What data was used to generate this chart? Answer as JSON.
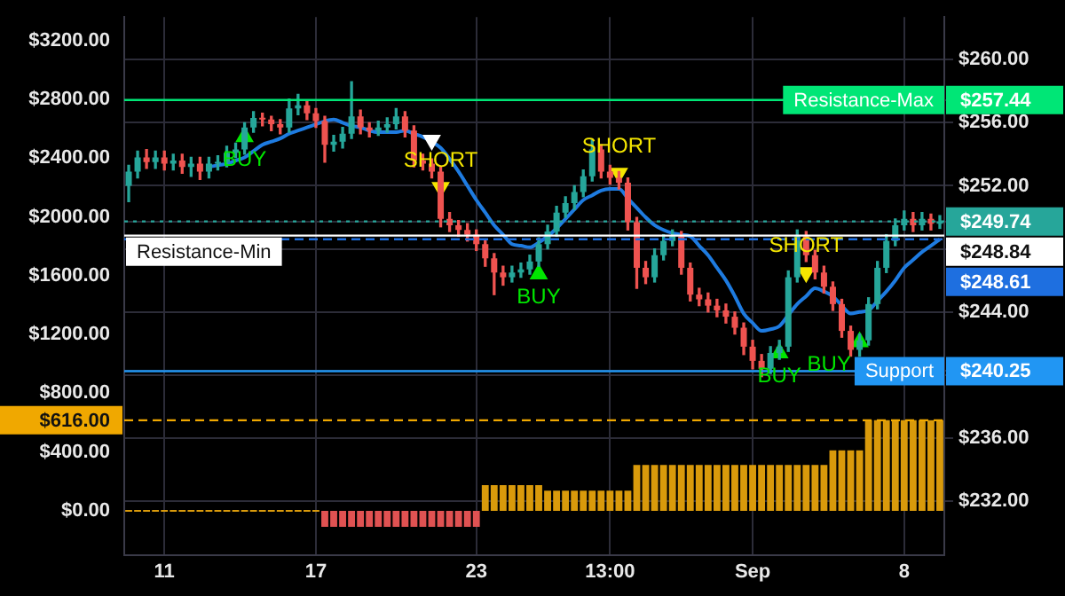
{
  "chart_data": {
    "type": "candlestick",
    "categories": [
      null,
      null,
      null,
      null,
      "11",
      null,
      null,
      null,
      null,
      null,
      null,
      null,
      null,
      null,
      null,
      null,
      null,
      null,
      null,
      null,
      null,
      "17",
      null,
      null,
      null,
      null,
      null,
      null,
      null,
      null,
      null,
      null,
      null,
      null,
      null,
      null,
      null,
      null,
      null,
      "23",
      null,
      null,
      null,
      null,
      null,
      null,
      null,
      null,
      null,
      null,
      null,
      null,
      null,
      null,
      "13:00",
      null,
      null,
      null,
      null,
      null,
      null,
      null,
      null,
      null,
      null,
      null,
      null,
      null,
      null,
      null,
      "Sep",
      null,
      null,
      null,
      null,
      null,
      null,
      null,
      null,
      null,
      null,
      null,
      null,
      null,
      null,
      null,
      null,
      "8",
      null,
      null,
      null,
      null
    ],
    "ohlc": [
      [
        252.0,
        253.3,
        251.0,
        252.9
      ],
      [
        252.9,
        254.2,
        252.5,
        253.8
      ],
      [
        253.8,
        254.3,
        253.1,
        253.5
      ],
      [
        253.5,
        254.2,
        253.1,
        253.8
      ],
      [
        253.8,
        254.2,
        253.0,
        253.4
      ],
      [
        253.4,
        254.0,
        253.0,
        253.6
      ],
      [
        253.6,
        254.0,
        252.8,
        253.2
      ],
      [
        253.2,
        253.8,
        252.6,
        253.4
      ],
      [
        253.4,
        253.8,
        252.4,
        252.9
      ],
      [
        252.9,
        253.8,
        252.5,
        253.4
      ],
      [
        253.4,
        253.9,
        253.0,
        253.5
      ],
      [
        253.5,
        254.5,
        253.2,
        254.1
      ],
      [
        254.1,
        254.7,
        253.8,
        254.3
      ],
      [
        254.3,
        256.0,
        254.0,
        255.7
      ],
      [
        255.7,
        256.7,
        255.4,
        256.3
      ],
      [
        256.3,
        256.6,
        255.8,
        256.2
      ],
      [
        256.2,
        256.4,
        255.5,
        255.9
      ],
      [
        255.9,
        256.2,
        255.3,
        255.7
      ],
      [
        255.7,
        257.5,
        255.4,
        256.9
      ],
      [
        256.9,
        257.8,
        256.5,
        257.1
      ],
      [
        257.1,
        257.4,
        256.2,
        256.6
      ],
      [
        256.6,
        256.9,
        255.7,
        256.1
      ],
      [
        256.1,
        256.4,
        253.5,
        254.6
      ],
      [
        254.6,
        255.2,
        254.2,
        254.8
      ],
      [
        254.8,
        255.7,
        254.4,
        255.3
      ],
      [
        255.3,
        258.6,
        255.0,
        256.4
      ],
      [
        256.4,
        256.8,
        255.3,
        255.7
      ],
      [
        255.7,
        256.0,
        255.1,
        255.5
      ],
      [
        255.5,
        256.1,
        255.2,
        255.7
      ],
      [
        255.7,
        256.3,
        255.4,
        255.9
      ],
      [
        255.9,
        256.9,
        255.6,
        256.4
      ],
      [
        256.4,
        256.7,
        255.1,
        255.5
      ],
      [
        255.5,
        255.8,
        253.2,
        253.6
      ],
      [
        253.6,
        254.0,
        253.0,
        253.4
      ],
      [
        253.4,
        253.7,
        252.5,
        252.9
      ],
      [
        252.9,
        253.2,
        249.4,
        249.9
      ],
      [
        249.9,
        250.3,
        249.1,
        249.5
      ],
      [
        249.5,
        249.8,
        248.8,
        249.2
      ],
      [
        249.2,
        249.6,
        248.5,
        248.9
      ],
      [
        248.9,
        249.2,
        247.9,
        248.3
      ],
      [
        248.3,
        248.6,
        246.9,
        247.4
      ],
      [
        247.4,
        247.7,
        245.1,
        246.5
      ],
      [
        246.5,
        246.9,
        245.7,
        246.2
      ],
      [
        246.2,
        246.9,
        245.9,
        246.5
      ],
      [
        246.5,
        247.1,
        246.2,
        246.7
      ],
      [
        246.7,
        247.6,
        246.4,
        247.2
      ],
      [
        247.2,
        248.7,
        246.9,
        248.3
      ],
      [
        248.3,
        249.5,
        248.0,
        249.1
      ],
      [
        249.1,
        250.7,
        248.8,
        250.3
      ],
      [
        250.3,
        251.3,
        250.0,
        250.9
      ],
      [
        250.9,
        252.0,
        250.5,
        251.6
      ],
      [
        251.6,
        253.0,
        251.3,
        252.6
      ],
      [
        252.6,
        254.9,
        252.3,
        254.3
      ],
      [
        254.3,
        254.6,
        252.5,
        252.9
      ],
      [
        252.9,
        253.3,
        252.1,
        252.5
      ],
      [
        252.5,
        252.9,
        251.8,
        252.2
      ],
      [
        252.2,
        252.5,
        249.2,
        249.7
      ],
      [
        249.7,
        250.0,
        245.5,
        246.8
      ],
      [
        246.8,
        247.2,
        245.8,
        246.2
      ],
      [
        246.2,
        248.0,
        245.9,
        247.6
      ],
      [
        247.6,
        248.9,
        247.3,
        248.5
      ],
      [
        248.5,
        249.2,
        248.2,
        248.8
      ],
      [
        248.8,
        249.1,
        246.4,
        246.8
      ],
      [
        246.8,
        247.1,
        244.7,
        245.1
      ],
      [
        245.1,
        245.5,
        244.4,
        244.8
      ],
      [
        244.8,
        245.2,
        244.0,
        244.4
      ],
      [
        244.4,
        244.8,
        243.7,
        244.1
      ],
      [
        244.1,
        244.5,
        243.3,
        243.7
      ],
      [
        243.7,
        244.0,
        242.6,
        243.0
      ],
      [
        243.0,
        243.3,
        241.3,
        241.8
      ],
      [
        241.8,
        242.2,
        240.4,
        240.9
      ],
      [
        240.9,
        241.3,
        239.9,
        240.4
      ],
      [
        240.4,
        241.8,
        240.1,
        241.4
      ],
      [
        241.4,
        242.2,
        241.0,
        241.8
      ],
      [
        241.8,
        246.6,
        241.5,
        246.2
      ],
      [
        246.2,
        249.2,
        245.9,
        248.8
      ],
      [
        248.8,
        249.1,
        247.2,
        247.6
      ],
      [
        247.6,
        247.9,
        246.1,
        246.5
      ],
      [
        246.5,
        246.9,
        245.2,
        245.6
      ],
      [
        245.6,
        245.9,
        244.1,
        244.5
      ],
      [
        244.5,
        244.8,
        242.4,
        242.8
      ],
      [
        242.8,
        243.1,
        241.2,
        241.6
      ],
      [
        241.6,
        242.6,
        241.2,
        242.2
      ],
      [
        242.2,
        244.9,
        241.9,
        244.5
      ],
      [
        244.5,
        247.2,
        244.2,
        246.8
      ],
      [
        246.8,
        248.9,
        246.5,
        248.5
      ],
      [
        248.5,
        249.9,
        248.2,
        249.5
      ],
      [
        249.5,
        250.4,
        249.2,
        249.9
      ],
      [
        249.9,
        250.3,
        249.1,
        249.5
      ],
      [
        249.5,
        250.3,
        249.2,
        249.9
      ],
      [
        249.9,
        250.2,
        249.2,
        249.6
      ],
      [
        249.6,
        250.1,
        249.3,
        249.74
      ]
    ],
    "colors": [
      "#26a69a",
      "#26a69a",
      "#ef5350",
      "#26a69a",
      "#ef5350",
      "#26a69a",
      "#ef5350",
      "#26a69a",
      "#ef5350",
      "#26a69a",
      "#26a69a",
      "#26a69a",
      "#26a69a",
      "#26a69a",
      "#26a69a",
      "#ef5350",
      "#ef5350",
      "#ef5350",
      "#26a69a",
      "#26a69a",
      "#ef5350",
      "#ef5350",
      "#ef5350",
      "#26a69a",
      "#26a69a",
      "#26a69a",
      "#ef5350",
      "#ef5350",
      "#26a69a",
      "#26a69a",
      "#26a69a",
      "#ef5350",
      "#ef5350",
      "#ef5350",
      "#ef5350",
      "#ef5350",
      "#ef5350",
      "#ef5350",
      "#ef5350",
      "#ef5350",
      "#ef5350",
      "#ef5350",
      "#ef5350",
      "#26a69a",
      "#26a69a",
      "#26a69a",
      "#26a69a",
      "#26a69a",
      "#26a69a",
      "#26a69a",
      "#26a69a",
      "#26a69a",
      "#26a69a",
      "#ef5350",
      "#ef5350",
      "#ef5350",
      "#ef5350",
      "#ef5350",
      "#ef5350",
      "#26a69a",
      "#26a69a",
      "#26a69a",
      "#ef5350",
      "#ef5350",
      "#ef5350",
      "#ef5350",
      "#ef5350",
      "#ef5350",
      "#ef5350",
      "#ef5350",
      "#ef5350",
      "#ef5350",
      "#26a69a",
      "#26a69a",
      "#26a69a",
      "#26a69a",
      "#ef5350",
      "#ef5350",
      "#ef5350",
      "#ef5350",
      "#ef5350",
      "#ef5350",
      "#26a69a",
      "#26a69a",
      "#26a69a",
      "#26a69a",
      "#26a69a",
      "#26a69a",
      "#ef5350",
      "#26a69a",
      "#ef5350",
      "#26a69a"
    ],
    "series": [
      {
        "type": "bar",
        "axis": "y2",
        "values": [
          0,
          0,
          0,
          0,
          0,
          0,
          0,
          0,
          0,
          0,
          0,
          0,
          0,
          0,
          0,
          0,
          0,
          0,
          0,
          0,
          0,
          0,
          -110,
          -110,
          -110,
          -110,
          -110,
          -110,
          -110,
          -110,
          -110,
          -110,
          -110,
          -110,
          -110,
          -110,
          -110,
          -110,
          -110,
          -110,
          174,
          174,
          174,
          174,
          174,
          174,
          174,
          137,
          137,
          137,
          137,
          137,
          137,
          137,
          137,
          137,
          137,
          311,
          311,
          311,
          311,
          311,
          311,
          311,
          311,
          311,
          311,
          311,
          311,
          311,
          311,
          311,
          311,
          311,
          311,
          311,
          311,
          311,
          311,
          411,
          411,
          411,
          411,
          616,
          616,
          616,
          616,
          616,
          616,
          616,
          616,
          616
        ],
        "colors": [
          "#d99a0b",
          "#d99a0b",
          "#d99a0b",
          "#d99a0b",
          "#d99a0b",
          "#d99a0b",
          "#d99a0b",
          "#d99a0b",
          "#d99a0b",
          "#d99a0b",
          "#d99a0b",
          "#d99a0b",
          "#d99a0b",
          "#d99a0b",
          "#d99a0b",
          "#d99a0b",
          "#d99a0b",
          "#d99a0b",
          "#d99a0b",
          "#d99a0b",
          "#d99a0b",
          "#d99a0b",
          "#e05252",
          "#e05252",
          "#e05252",
          "#e05252",
          "#e05252",
          "#e05252",
          "#e05252",
          "#e05252",
          "#e05252",
          "#e05252",
          "#e05252",
          "#e05252",
          "#e05252",
          "#e05252",
          "#e05252",
          "#e05252",
          "#e05252",
          "#e05252",
          "#d99a0b",
          "#d99a0b",
          "#d99a0b",
          "#d99a0b",
          "#d99a0b",
          "#d99a0b",
          "#d99a0b",
          "#d99a0b",
          "#d99a0b",
          "#d99a0b",
          "#d99a0b",
          "#d99a0b",
          "#d99a0b",
          "#d99a0b",
          "#d99a0b",
          "#d99a0b",
          "#d99a0b",
          "#d99a0b",
          "#d99a0b",
          "#d99a0b",
          "#d99a0b",
          "#d99a0b",
          "#d99a0b",
          "#d99a0b",
          "#d99a0b",
          "#d99a0b",
          "#d99a0b",
          "#d99a0b",
          "#d99a0b",
          "#d99a0b",
          "#d99a0b",
          "#d99a0b",
          "#d99a0b",
          "#d99a0b",
          "#d99a0b",
          "#d99a0b",
          "#d99a0b",
          "#d99a0b",
          "#d99a0b",
          "#d99a0b",
          "#d99a0b",
          "#d99a0b",
          "#d99a0b",
          "#d99a0b",
          "#d99a0b",
          "#d99a0b",
          "#d99a0b",
          "#d99a0b",
          "#d99a0b",
          "#d99a0b",
          "#d99a0b",
          "#d99a0b"
        ]
      },
      {
        "type": "line",
        "color": "#1e7be0",
        "values": [
          null,
          null,
          null,
          null,
          null,
          null,
          null,
          null,
          null,
          253.2,
          253.3,
          253.4,
          253.6,
          253.8,
          254.2,
          254.6,
          254.8,
          255.0,
          255.3,
          255.5,
          255.7,
          255.9,
          256.1,
          256.2,
          256.0,
          255.8,
          255.7,
          255.5,
          255.4,
          255.4,
          255.4,
          255.5,
          255.3,
          255.1,
          254.8,
          254.4,
          253.7,
          252.9,
          252.0,
          251.1,
          250.3,
          249.5,
          248.9,
          248.3,
          248.2,
          248.1,
          248.4,
          248.8,
          249.3,
          249.9,
          250.5,
          251.1,
          251.4,
          251.7,
          251.8,
          251.8,
          251.2,
          250.6,
          250.0,
          249.5,
          249.2,
          249.0,
          248.9,
          248.8,
          248.2,
          247.6,
          246.8,
          246.0,
          245.0,
          243.9,
          243.3,
          242.8,
          242.9,
          243.1,
          243.8,
          244.5,
          245.0,
          245.5,
          245.3,
          245.0,
          244.4,
          243.9,
          244.0,
          244.1,
          244.7,
          245.3,
          246.0,
          246.8,
          247.3,
          247.8,
          248.2,
          248.61
        ]
      },
      {
        "type": "scatter",
        "color": "#00e600",
        "marker": "triangle",
        "values": [
          null,
          null,
          null,
          null,
          null,
          null,
          null,
          null,
          null,
          null,
          null,
          null,
          null,
          255.1,
          null,
          null,
          null,
          null,
          null,
          null,
          null,
          null,
          null,
          null,
          null,
          null,
          null,
          null,
          null,
          null,
          null,
          null,
          null,
          null,
          null,
          null,
          null,
          null,
          null,
          null,
          null,
          null,
          null,
          null,
          null,
          null,
          246.4,
          null,
          null,
          null,
          null,
          null,
          null,
          null,
          null,
          null,
          null,
          null,
          null,
          null,
          null,
          null,
          null,
          null,
          null,
          null,
          null,
          null,
          null,
          null,
          null,
          null,
          null,
          241.4,
          null,
          null,
          null,
          null,
          null,
          null,
          null,
          null,
          242.1,
          null,
          null,
          null,
          null,
          null,
          null,
          null,
          null,
          null
        ],
        "value_labels": [
          null,
          null,
          null,
          null,
          null,
          null,
          null,
          null,
          null,
          null,
          null,
          null,
          null,
          "BUY",
          null,
          null,
          null,
          null,
          null,
          null,
          null,
          null,
          null,
          null,
          null,
          null,
          null,
          null,
          null,
          null,
          null,
          null,
          null,
          null,
          null,
          null,
          null,
          null,
          null,
          null,
          null,
          null,
          null,
          null,
          null,
          null,
          "BUY",
          null,
          null,
          null,
          null,
          null,
          null,
          null,
          null,
          null,
          null,
          null,
          null,
          null,
          null,
          null,
          null,
          null,
          null,
          null,
          null,
          null,
          null,
          null,
          null,
          null,
          null,
          "BUY",
          null,
          null,
          null,
          null,
          null,
          null,
          null,
          null,
          "BUY",
          null,
          null,
          null,
          null,
          null,
          null,
          null,
          null,
          null
        ]
      },
      {
        "type": "scatter",
        "color": "#f5e600",
        "marker": "triangle",
        "values": [
          null,
          null,
          null,
          null,
          null,
          null,
          null,
          null,
          null,
          null,
          null,
          null,
          null,
          null,
          null,
          null,
          null,
          null,
          null,
          null,
          null,
          null,
          null,
          null,
          null,
          null,
          null,
          null,
          null,
          null,
          null,
          null,
          null,
          null,
          null,
          251.9,
          null,
          null,
          null,
          null,
          null,
          null,
          null,
          null,
          null,
          null,
          null,
          null,
          null,
          null,
          null,
          null,
          null,
          null,
          null,
          252.8,
          null,
          null,
          null,
          null,
          null,
          null,
          null,
          null,
          null,
          null,
          null,
          null,
          null,
          null,
          null,
          null,
          null,
          null,
          null,
          null,
          246.5,
          null,
          null,
          null,
          null,
          null,
          null,
          null,
          null,
          null,
          null,
          null,
          null,
          null,
          null,
          null
        ],
        "value_labels": [
          null,
          null,
          null,
          null,
          null,
          null,
          null,
          null,
          null,
          null,
          null,
          null,
          null,
          null,
          null,
          null,
          null,
          null,
          null,
          null,
          null,
          null,
          null,
          null,
          null,
          null,
          null,
          null,
          null,
          null,
          null,
          null,
          null,
          null,
          null,
          "SHORT",
          null,
          null,
          null,
          null,
          null,
          null,
          null,
          null,
          null,
          null,
          null,
          null,
          null,
          null,
          null,
          null,
          null,
          null,
          null,
          "SHORT",
          null,
          null,
          null,
          null,
          null,
          null,
          null,
          null,
          null,
          null,
          null,
          null,
          null,
          null,
          null,
          null,
          null,
          null,
          null,
          null,
          "SHORT",
          null,
          null,
          null,
          null,
          null,
          null,
          null,
          null,
          null,
          null,
          null,
          null,
          null,
          null,
          null
        ]
      },
      {
        "type": "scatter",
        "color": "#ffffff",
        "marker": "triangle",
        "values": [
          null,
          null,
          null,
          null,
          null,
          null,
          null,
          null,
          null,
          null,
          null,
          null,
          null,
          null,
          null,
          null,
          null,
          null,
          null,
          null,
          null,
          null,
          null,
          null,
          null,
          null,
          null,
          null,
          null,
          null,
          null,
          null,
          null,
          null,
          254.9,
          null,
          null,
          null,
          null,
          null,
          null,
          null,
          null,
          null,
          null,
          null,
          null,
          null,
          null,
          null,
          null,
          null,
          null,
          null,
          null,
          null,
          null,
          null,
          null,
          null,
          null,
          null,
          null,
          null,
          null,
          null,
          null,
          null,
          null,
          null,
          null,
          null,
          null,
          null,
          null,
          null,
          null,
          null,
          null,
          null,
          null,
          null,
          null,
          null,
          null,
          null,
          null,
          null,
          null,
          null,
          null,
          null
        ]
      }
    ],
    "ylim": [
      228.6,
      262.7
    ],
    "yticks": [
      {
        "value": 232,
        "label": "$232.00"
      },
      {
        "value": 236,
        "label": "$236.00"
      },
      {
        "value": 240,
        "label": null
      },
      {
        "value": 244,
        "label": "$244.00"
      },
      {
        "value": 248,
        "label": null
      },
      {
        "value": 252,
        "label": "$252.00"
      },
      {
        "value": 256,
        "label": "$256.00"
      },
      {
        "value": 260,
        "label": "$260.00"
      },
      {
        "value": 257.44,
        "label": "$257.44"
      },
      {
        "value": 249.74,
        "label": "$249.74"
      },
      {
        "value": 240.25,
        "label": "$240.25"
      }
    ],
    "y2lim": [
      -300,
      3360
    ],
    "y2ticks": [
      {
        "value": 0,
        "label": "$0.00"
      },
      {
        "value": 400,
        "label": "$400.00"
      },
      {
        "value": 800,
        "label": "$800.00"
      },
      {
        "value": 1200,
        "label": "$1200.00"
      },
      {
        "value": 1600,
        "label": "$1600.00"
      },
      {
        "value": 2000,
        "label": "$2000.00"
      },
      {
        "value": 2400,
        "label": "$2400.00"
      },
      {
        "value": 2800,
        "label": "$2800.00"
      },
      {
        "value": 3200,
        "label": "$3200.00"
      },
      {
        "value": 616,
        "label": "$616.00"
      }
    ],
    "ref_lines": [
      {
        "axis": "y",
        "value": 257.44,
        "label": "Resistance-Max",
        "color": "#00e676",
        "line_style": "solid"
      },
      {
        "axis": "y",
        "value": 249.74,
        "color": "#26a69a",
        "line_style": "dotted"
      },
      {
        "axis": "y",
        "value": 248.84,
        "label": "Resistance-Min",
        "color": "#ffffff",
        "line_style": "solid"
      },
      {
        "axis": "y",
        "value": 248.61,
        "color": "#1e6fe0",
        "line_style": "dashed"
      },
      {
        "axis": "y",
        "value": 240.25,
        "label": "Support",
        "color": "#2196f3",
        "line_style": "solid"
      },
      {
        "axis": "y2",
        "value": 616,
        "color": "#f0a800",
        "line_style": "dashed"
      }
    ],
    "annotations": [
      "$248.84",
      "$248.61"
    ],
    "grid": true,
    "legend": false
  }
}
